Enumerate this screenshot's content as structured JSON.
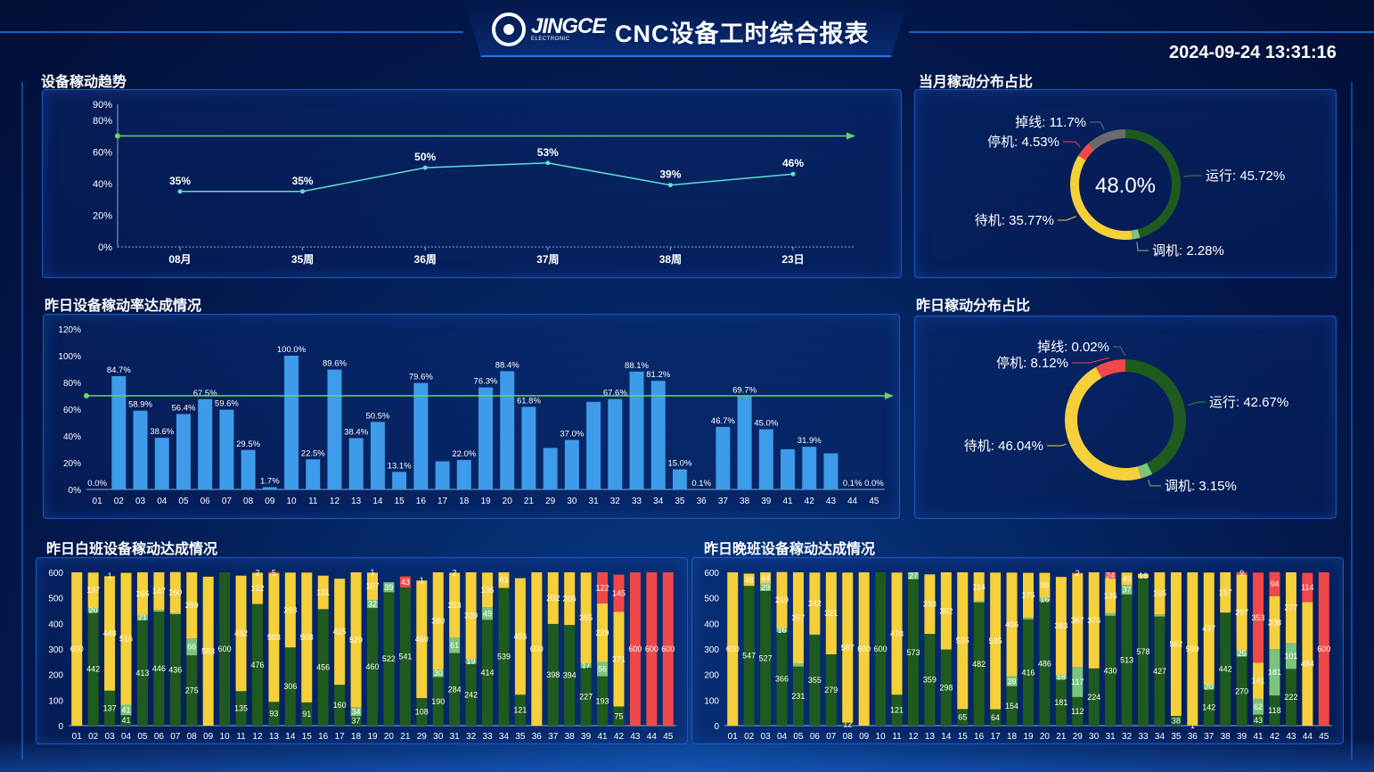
{
  "header": {
    "logo_text": "JINGCE",
    "logo_sub": "ELECTRONIC",
    "title": "CNC设备工时综合报表",
    "datetime": "2024-09-24 13:31:16"
  },
  "sections": {
    "trend_title": "设备稼动趋势",
    "month_dist_title": "当月稼动分布占比",
    "yesterday_rate_title": "昨日设备稼动率达成情况",
    "yesterday_dist_title": "昨日稼动分布占比",
    "day_shift_title": "昨日白班设备稼动达成情况",
    "night_shift_title": "昨日晚班设备稼动达成情况"
  },
  "colors": {
    "run": "#1f5a1f",
    "debug": "#7cc47c",
    "standby": "#f5d03a",
    "stop": "#f04848",
    "offline": "#6b6b6b",
    "bar": "#3d9be9",
    "target": "#6cd36c",
    "trend_line": "#5fe0d0"
  },
  "chart_data": [
    {
      "type": "line",
      "title": "设备稼动趋势",
      "categories": [
        "08月",
        "35周",
        "36周",
        "37周",
        "38周",
        "23日"
      ],
      "values": [
        35,
        35,
        50,
        53,
        39,
        46
      ],
      "value_labels": [
        "35%",
        "35%",
        "50%",
        "53%",
        "39%",
        "46%"
      ],
      "target": 70,
      "ylim": [
        0,
        90
      ],
      "yticks": [
        "0%",
        "20%",
        "40%",
        "60%",
        "80%",
        "90%"
      ],
      "yticks_values": [
        0,
        20,
        40,
        60,
        80,
        90
      ]
    },
    {
      "type": "pie",
      "title": "当月稼动分布占比",
      "center_label": "48.0%",
      "slices": [
        {
          "name": "运行",
          "value": 45.72,
          "label": "运行: 45.72%",
          "color": "#1f5a1f"
        },
        {
          "name": "调机",
          "value": 2.28,
          "label": "调机: 2.28%",
          "color": "#7cc47c"
        },
        {
          "name": "待机",
          "value": 35.77,
          "label": "待机: 35.77%",
          "color": "#f5d03a"
        },
        {
          "name": "停机",
          "value": 4.53,
          "label": "停机: 4.53%",
          "color": "#f04848"
        },
        {
          "name": "掉线",
          "value": 11.7,
          "label": "掉线: 11.7%",
          "color": "#6b6b6b"
        }
      ]
    },
    {
      "type": "bar",
      "title": "昨日设备稼动率达成情况",
      "categories": [
        "01",
        "02",
        "03",
        "04",
        "05",
        "06",
        "07",
        "08",
        "09",
        "10",
        "11",
        "12",
        "13",
        "14",
        "15",
        "16",
        "17",
        "18",
        "19",
        "20",
        "21",
        "29",
        "30",
        "31",
        "32",
        "33",
        "34",
        "35",
        "36",
        "37",
        "38",
        "39",
        "41",
        "42",
        "43",
        "44",
        "45"
      ],
      "values": [
        0.0,
        84.7,
        58.9,
        38.6,
        56.4,
        67.5,
        59.6,
        29.5,
        1.7,
        100.0,
        22.5,
        89.6,
        38.4,
        50.5,
        13.1,
        79.6,
        21.0,
        22.0,
        76.3,
        88.4,
        61.8,
        31.0,
        37.0,
        65.5,
        67.6,
        88.1,
        81.2,
        15.0,
        0.1,
        46.7,
        69.7,
        45.0,
        30.0,
        31.9,
        27.0,
        0.1,
        0.0
      ],
      "labels": [
        "0.0%",
        "84.7%",
        "58.9%",
        "38.6%",
        "56.4%",
        "67.5%",
        "59.6%",
        "29.5%",
        "1.7%",
        "100.0%",
        "22.5%",
        "89.6%",
        "38.4%",
        "50.5%",
        "13.1%",
        "79.6%",
        "",
        "22.0%",
        "76.3%",
        "88.4%",
        "61.8%",
        "",
        "37.0%",
        "",
        "67.6%",
        "88.1%",
        "81.2%",
        "15.0%",
        "0.1%",
        "46.7%",
        "69.7%",
        "45.0%",
        "",
        "31.9%",
        "",
        "0.1%",
        "0.0%"
      ],
      "target": 70,
      "ylim": [
        0,
        120
      ],
      "yticks": [
        "0%",
        "20%",
        "40%",
        "60%",
        "80%",
        "100%",
        "120%"
      ],
      "yticks_values": [
        0,
        20,
        40,
        60,
        80,
        100,
        120
      ]
    },
    {
      "type": "pie",
      "title": "昨日稼动分布占比",
      "slices": [
        {
          "name": "运行",
          "value": 42.67,
          "label": "运行: 42.67%",
          "color": "#1f5a1f"
        },
        {
          "name": "调机",
          "value": 3.15,
          "label": "调机: 3.15%",
          "color": "#7cc47c"
        },
        {
          "name": "待机",
          "value": 46.04,
          "label": "待机: 46.04%",
          "color": "#f5d03a"
        },
        {
          "name": "停机",
          "value": 8.12,
          "label": "停机: 8.12%",
          "color": "#f04848"
        },
        {
          "name": "掉线",
          "value": 0.02,
          "label": "掉线: 0.02%",
          "color": "#6b6b6b"
        }
      ]
    },
    {
      "type": "bar",
      "stacked": true,
      "title": "昨日白班设备稼动达成情况",
      "categories": [
        "01",
        "02",
        "03",
        "04",
        "05",
        "06",
        "07",
        "08",
        "09",
        "10",
        "11",
        "12",
        "13",
        "14",
        "15",
        "16",
        "17",
        "18",
        "19",
        "20",
        "21",
        "29",
        "30",
        "31",
        "32",
        "33",
        "34",
        "35",
        "36",
        "37",
        "38",
        "39",
        "41",
        "42",
        "43",
        "44",
        "45"
      ],
      "ylim": [
        0,
        600
      ],
      "yticks": [
        "0",
        "100",
        "200",
        "300",
        "400",
        "500",
        "600"
      ],
      "yticks_values": [
        0,
        100,
        200,
        300,
        400,
        500,
        600
      ],
      "series": [
        {
          "name": "运行",
          "values": [
            0,
            442,
            137,
            41,
            413,
            446,
            436,
            275,
            0,
            600,
            135,
            476,
            93,
            306,
            91,
            456,
            160,
            37,
            460,
            522,
            541,
            108,
            190,
            284,
            242,
            414,
            539,
            121,
            0,
            398,
            394,
            227,
            193,
            75,
            0,
            0,
            0
          ]
        },
        {
          "name": "调机",
          "values": [
            0,
            20,
            0,
            41,
            21,
            7,
            5,
            66,
            0,
            0,
            0,
            0,
            0,
            0,
            0,
            0,
            0,
            34,
            32,
            39,
            0,
            0,
            30,
            61,
            19,
            49,
            0,
            0,
            0,
            0,
            0,
            17,
            56,
            0,
            0,
            0,
            0
          ]
        },
        {
          "name": "待机",
          "values": [
            600,
            137,
            448,
            516,
            166,
            147,
            160,
            259,
            583,
            0,
            452,
            122,
            503,
            293,
            508,
            131,
            415,
            529,
            107,
            0,
            0,
            460,
            380,
            253,
            339,
            136,
            61,
            456,
            600,
            202,
            206,
            355,
            229,
            371,
            0,
            0,
            0
          ]
        },
        {
          "name": "停机",
          "values": [
            0,
            0,
            0,
            0,
            0,
            0,
            0,
            0,
            0,
            0,
            0,
            0,
            5,
            0,
            0,
            0,
            0,
            0,
            0,
            0,
            43,
            0,
            0,
            0,
            0,
            0,
            0,
            0,
            0,
            0,
            0,
            0,
            122,
            145,
            600,
            600,
            600
          ]
        },
        {
          "name": "掉线",
          "values": [
            0,
            0,
            1,
            0,
            0,
            0,
            0,
            0,
            0,
            0,
            0,
            2,
            0,
            0,
            0,
            0,
            0,
            0,
            1,
            0,
            0,
            1,
            0,
            2,
            0,
            0,
            0,
            0,
            0,
            0,
            0,
            0,
            0,
            0,
            0,
            0,
            0
          ]
        }
      ]
    },
    {
      "type": "bar",
      "stacked": true,
      "title": "昨日晚班设备稼动达成情况",
      "categories": [
        "01",
        "02",
        "03",
        "04",
        "05",
        "06",
        "07",
        "08",
        "09",
        "10",
        "11",
        "12",
        "13",
        "14",
        "15",
        "16",
        "17",
        "18",
        "19",
        "20",
        "21",
        "29",
        "30",
        "31",
        "32",
        "33",
        "34",
        "35",
        "36",
        "37",
        "38",
        "39",
        "41",
        "42",
        "43",
        "44",
        "45"
      ],
      "ylim": [
        0,
        600
      ],
      "yticks": [
        "0",
        "100",
        "200",
        "300",
        "400",
        "500",
        "600"
      ],
      "yticks_values": [
        0,
        100,
        200,
        300,
        400,
        500,
        600
      ],
      "series": [
        {
          "name": "运行",
          "values": [
            0,
            547,
            527,
            366,
            231,
            355,
            279,
            12,
            0,
            600,
            121,
            573,
            359,
            298,
            65,
            482,
            64,
            154,
            416,
            486,
            181,
            112,
            224,
            430,
            513,
            578,
            427,
            38,
            1,
            142,
            442,
            270,
            43,
            118,
            222,
            0,
            0
          ]
        },
        {
          "name": "调机",
          "values": [
            0,
            0,
            29,
            16,
            12,
            2,
            0,
            0,
            0,
            0,
            0,
            27,
            0,
            0,
            0,
            4,
            0,
            39,
            7,
            16,
            18,
            117,
            0,
            10,
            37,
            0,
            8,
            0,
            0,
            20,
            1,
            25,
            62,
            181,
            101,
            0,
            0
          ]
        },
        {
          "name": "待机",
          "values": [
            600,
            48,
            44,
            219,
            357,
            242,
            321,
            587,
            600,
            0,
            478,
            0,
            233,
            302,
            535,
            114,
            535,
            406,
            175,
            96,
            383,
            367,
            376,
            136,
            49,
            16,
            165,
            562,
            599,
            437,
            157,
            297,
            141,
            208,
            277,
            484,
            0
          ]
        },
        {
          "name": "停机",
          "values": [
            0,
            0,
            0,
            0,
            0,
            0,
            0,
            0,
            0,
            0,
            0,
            0,
            0,
            0,
            0,
            0,
            0,
            0,
            0,
            0,
            0,
            2,
            0,
            24,
            0,
            0,
            0,
            0,
            0,
            0,
            0,
            9,
            353,
            94,
            0,
            114,
            600
          ]
        },
        {
          "name": "掉线",
          "values": [
            0,
            0,
            0,
            0,
            0,
            0,
            0,
            0,
            0,
            0,
            0,
            0,
            0,
            0,
            0,
            0,
            0,
            0,
            0,
            0,
            0,
            0,
            0,
            0,
            0,
            0,
            0,
            0,
            0,
            0,
            0,
            0,
            0,
            0,
            0,
            0,
            0
          ]
        }
      ]
    }
  ]
}
